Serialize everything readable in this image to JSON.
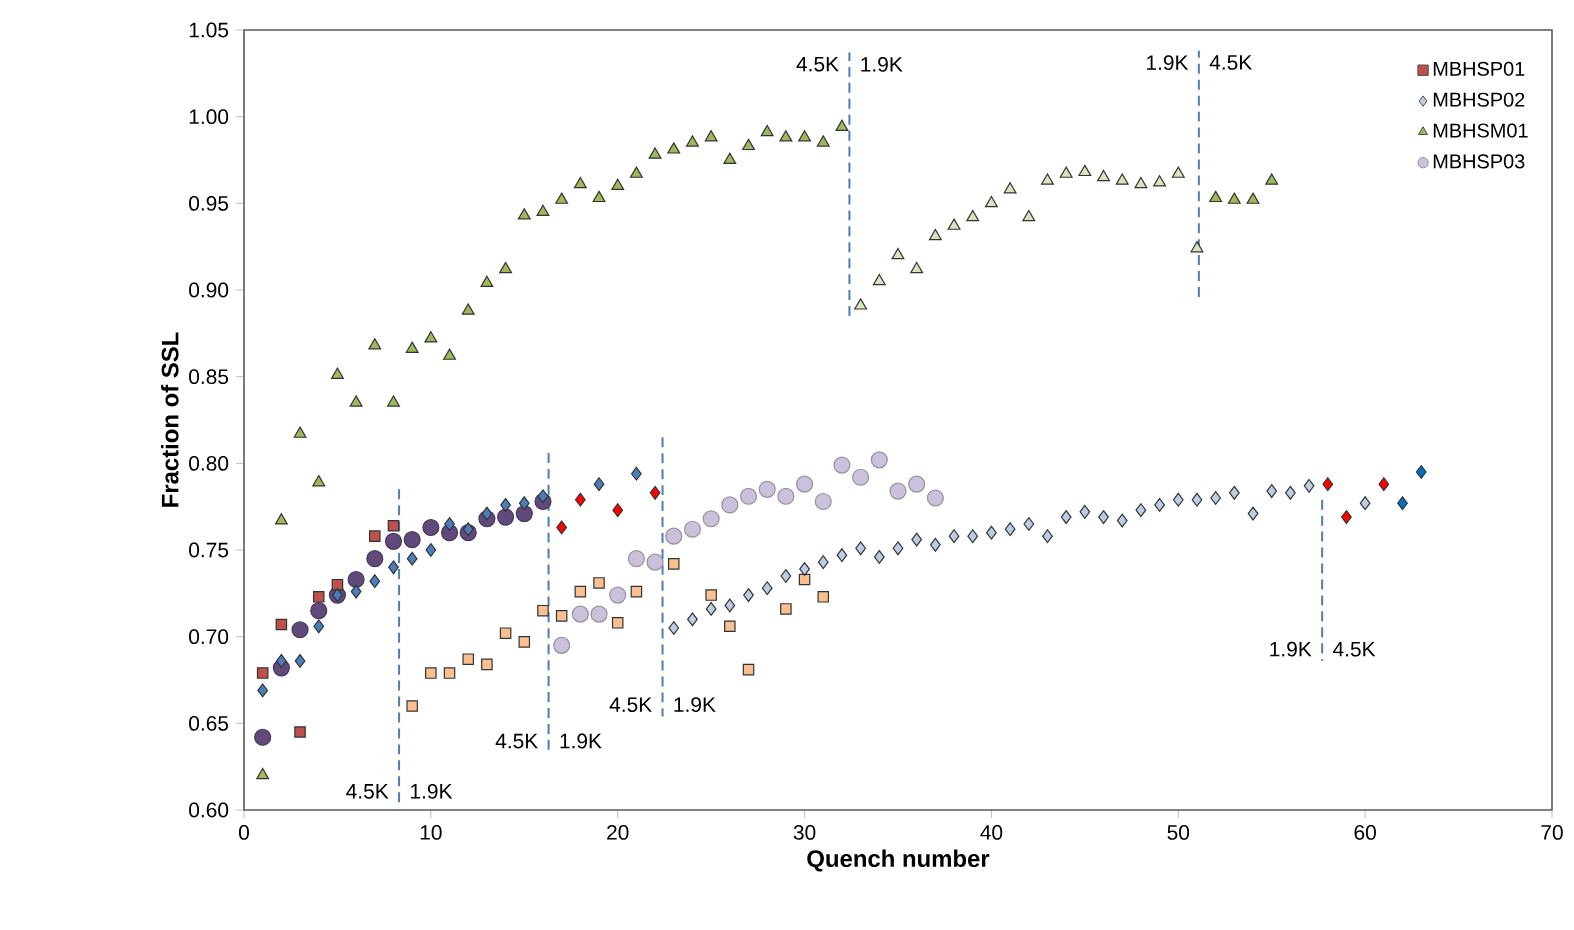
{
  "chart_data": {
    "type": "scatter",
    "xlabel": "Quench number",
    "ylabel": "Fraction of SSL",
    "xlim": [
      0,
      70
    ],
    "ylim": [
      0.6,
      1.05
    ],
    "xticks": [
      0,
      10,
      20,
      30,
      40,
      50,
      60,
      70
    ],
    "yticks": [
      {
        "value": 0.6,
        "label": "0.60"
      },
      {
        "value": 0.65,
        "label": "0.65"
      },
      {
        "value": 0.7,
        "label": "0.70"
      },
      {
        "value": 0.75,
        "label": "0.75"
      },
      {
        "value": 0.8,
        "label": "0.80"
      },
      {
        "value": 0.85,
        "label": "0.85"
      },
      {
        "value": 0.9,
        "label": "0.90"
      },
      {
        "value": 0.95,
        "label": "0.95"
      },
      {
        "value": 1.0,
        "label": "1.00"
      },
      {
        "value": 1.05,
        "label": "1.05"
      }
    ],
    "grid": false,
    "legend": "top right",
    "series": [
      {
        "name": "MBHSP01",
        "color": "#c0504d",
        "marker": "square",
        "x": [
          1,
          2,
          3,
          4,
          5,
          7,
          8,
          9,
          10,
          11,
          12,
          13,
          14,
          15,
          16,
          17,
          18,
          19,
          20,
          21,
          23,
          25,
          26,
          27,
          29,
          30,
          31
        ],
        "values": [
          0.679,
          0.707,
          0.645,
          0.723,
          0.73,
          0.758,
          0.764,
          0.66,
          0.679,
          0.679,
          0.687,
          0.684,
          0.702,
          0.697,
          0.715,
          0.712,
          0.726,
          0.731,
          0.708,
          0.726,
          0.742,
          0.724,
          0.706,
          0.681,
          0.716,
          0.733,
          0.723
        ],
        "colors": [
          "#c0504d",
          "#c0504d",
          "#c0504d",
          "#c0504d",
          "#c0504d",
          "#c0504d",
          "#c0504d",
          "#fac090",
          "#fac090",
          "#fac090",
          "#fac090",
          "#fac090",
          "#fac090",
          "#fac090",
          "#fac090",
          "#fac090",
          "#fac090",
          "#fac090",
          "#fac090",
          "#fac090",
          "#fac090",
          "#fac090",
          "#fac090",
          "#fac090",
          "#fac090",
          "#fac090",
          "#fac090"
        ]
      },
      {
        "name": "MBHSP02",
        "color": "#b9cde5",
        "marker": "diamond",
        "x": [
          1,
          2,
          3,
          4,
          5,
          6,
          7,
          8,
          9,
          10,
          11,
          12,
          13,
          14,
          15,
          16,
          17,
          18,
          19,
          20,
          21,
          22,
          23,
          24,
          25,
          26,
          27,
          28,
          29,
          30,
          31,
          32,
          33,
          34,
          35,
          36,
          37,
          38,
          39,
          40,
          41,
          42,
          43,
          44,
          45,
          46,
          47,
          48,
          49,
          50,
          51,
          52,
          53,
          54,
          55,
          56,
          57,
          58,
          59,
          60,
          61,
          62,
          63
        ],
        "values": [
          0.669,
          0.686,
          0.686,
          0.706,
          0.724,
          0.726,
          0.732,
          0.74,
          0.745,
          0.75,
          0.765,
          0.762,
          0.771,
          0.776,
          0.777,
          0.781,
          0.763,
          0.779,
          0.788,
          0.773,
          0.794,
          0.783,
          0.705,
          0.71,
          0.716,
          0.718,
          0.724,
          0.728,
          0.735,
          0.739,
          0.743,
          0.747,
          0.751,
          0.746,
          0.751,
          0.756,
          0.753,
          0.758,
          0.758,
          0.76,
          0.762,
          0.765,
          0.758,
          0.769,
          0.772,
          0.769,
          0.767,
          0.773,
          0.776,
          0.779,
          0.779,
          0.78,
          0.783,
          0.771,
          0.784,
          0.783,
          0.787,
          0.788,
          0.769,
          0.777,
          0.788,
          0.777,
          0.795
        ],
        "colors": [
          "#4a7ebb",
          "#4a7ebb",
          "#4a7ebb",
          "#4a7ebb",
          "#4a7ebb",
          "#4a7ebb",
          "#4a7ebb",
          "#4a7ebb",
          "#4a7ebb",
          "#4a7ebb",
          "#4a7ebb",
          "#4a7ebb",
          "#4a7ebb",
          "#4a7ebb",
          "#4a7ebb",
          "#4a7ebb",
          "#ff0000",
          "#ff0000",
          "#4a7ebb",
          "#ff0000",
          "#4a7ebb",
          "#ff0000",
          "#b9cde5",
          "#b9cde5",
          "#b9cde5",
          "#b9cde5",
          "#b9cde5",
          "#b9cde5",
          "#b9cde5",
          "#b9cde5",
          "#b9cde5",
          "#b9cde5",
          "#b9cde5",
          "#b9cde5",
          "#b9cde5",
          "#b9cde5",
          "#b9cde5",
          "#b9cde5",
          "#b9cde5",
          "#b9cde5",
          "#b9cde5",
          "#b9cde5",
          "#b9cde5",
          "#b9cde5",
          "#b9cde5",
          "#b9cde5",
          "#b9cde5",
          "#b9cde5",
          "#b9cde5",
          "#b9cde5",
          "#b9cde5",
          "#b9cde5",
          "#b9cde5",
          "#b9cde5",
          "#b9cde5",
          "#b9cde5",
          "#b9cde5",
          "#ff0000",
          "#ff0000",
          "#b9cde5",
          "#ff0000",
          "#0070c0",
          "#0070c0"
        ]
      },
      {
        "name": "MBHSM01",
        "color": "#9bbb59",
        "marker": "triangle",
        "x": [
          1,
          2,
          3,
          4,
          5,
          6,
          7,
          8,
          9,
          10,
          11,
          12,
          13,
          14,
          15,
          16,
          17,
          18,
          19,
          20,
          21,
          22,
          23,
          24,
          25,
          26,
          27,
          28,
          29,
          30,
          31,
          32,
          33,
          34,
          35,
          36,
          37,
          38,
          39,
          40,
          41,
          42,
          43,
          44,
          45,
          46,
          47,
          48,
          49,
          50,
          51,
          52,
          53,
          54,
          55
        ],
        "values": [
          0.62,
          0.767,
          0.817,
          0.789,
          0.851,
          0.835,
          0.868,
          0.835,
          0.866,
          0.872,
          0.862,
          0.888,
          0.904,
          0.912,
          0.943,
          0.945,
          0.952,
          0.961,
          0.953,
          0.96,
          0.967,
          0.978,
          0.981,
          0.985,
          0.988,
          0.975,
          0.983,
          0.991,
          0.988,
          0.988,
          0.985,
          0.994,
          0.891,
          0.905,
          0.92,
          0.912,
          0.931,
          0.937,
          0.942,
          0.95,
          0.958,
          0.942,
          0.963,
          0.967,
          0.968,
          0.965,
          0.963,
          0.961,
          0.962,
          0.967,
          0.924,
          0.953,
          0.952,
          0.952,
          0.963
        ],
        "colors": [
          "#9bbb59",
          "#9bbb59",
          "#9bbb59",
          "#9bbb59",
          "#9bbb59",
          "#9bbb59",
          "#9bbb59",
          "#9bbb59",
          "#9bbb59",
          "#9bbb59",
          "#9bbb59",
          "#9bbb59",
          "#9bbb59",
          "#9bbb59",
          "#9bbb59",
          "#9bbb59",
          "#9bbb59",
          "#9bbb59",
          "#9bbb59",
          "#9bbb59",
          "#9bbb59",
          "#9bbb59",
          "#9bbb59",
          "#9bbb59",
          "#9bbb59",
          "#9bbb59",
          "#9bbb59",
          "#9bbb59",
          "#9bbb59",
          "#9bbb59",
          "#9bbb59",
          "#9bbb59",
          "#d7e4bd",
          "#d7e4bd",
          "#d7e4bd",
          "#d7e4bd",
          "#d7e4bd",
          "#d7e4bd",
          "#d7e4bd",
          "#d7e4bd",
          "#d7e4bd",
          "#d7e4bd",
          "#d7e4bd",
          "#d7e4bd",
          "#d7e4bd",
          "#d7e4bd",
          "#d7e4bd",
          "#d7e4bd",
          "#d7e4bd",
          "#d7e4bd",
          "#d7e4bd",
          "#9bbb59",
          "#9bbb59",
          "#9bbb59",
          "#9bbb59"
        ]
      },
      {
        "name": "MBHSP03",
        "color": "#ccc1da",
        "marker": "circle",
        "x": [
          1,
          2,
          3,
          4,
          5,
          6,
          7,
          8,
          9,
          10,
          11,
          12,
          13,
          14,
          15,
          16,
          17,
          18,
          19,
          20,
          21,
          22,
          23,
          24,
          25,
          26,
          27,
          28,
          29,
          30,
          31,
          32,
          33,
          34,
          35,
          36,
          37
        ],
        "values": [
          0.642,
          0.682,
          0.704,
          0.715,
          0.724,
          0.733,
          0.745,
          0.755,
          0.756,
          0.763,
          0.76,
          0.76,
          0.768,
          0.769,
          0.771,
          0.778,
          0.695,
          0.713,
          0.713,
          0.724,
          0.745,
          0.743,
          0.758,
          0.762,
          0.768,
          0.776,
          0.781,
          0.785,
          0.781,
          0.788,
          0.778,
          0.799,
          0.792,
          0.802,
          0.784,
          0.788,
          0.78
        ],
        "colors": [
          "#604a7b",
          "#604a7b",
          "#604a7b",
          "#604a7b",
          "#604a7b",
          "#604a7b",
          "#604a7b",
          "#604a7b",
          "#604a7b",
          "#604a7b",
          "#604a7b",
          "#604a7b",
          "#604a7b",
          "#604a7b",
          "#604a7b",
          "#604a7b",
          "#ccc1da",
          "#ccc1da",
          "#ccc1da",
          "#ccc1da",
          "#ccc1da",
          "#ccc1da",
          "#ccc1da",
          "#ccc1da",
          "#ccc1da",
          "#ccc1da",
          "#ccc1da",
          "#ccc1da",
          "#ccc1da",
          "#ccc1da",
          "#ccc1da",
          "#ccc1da",
          "#ccc1da",
          "#ccc1da",
          "#ccc1da",
          "#ccc1da",
          "#ccc1da"
        ]
      },
      {
        "type": "line",
        "color": "#4a7ebb",
        "line_style": "dashed",
        "marker": "none",
        "x": [
          8.3,
          8.3
        ],
        "values": [
          0.785,
          0.604
        ]
      },
      {
        "type": "line",
        "color": "#4a7ebb",
        "line_style": "dashed",
        "marker": "none",
        "x": [
          16.3,
          16.3
        ],
        "values": [
          0.806,
          0.633
        ]
      },
      {
        "type": "line",
        "color": "#4a7ebb",
        "line_style": "dashed",
        "marker": "none",
        "x": [
          22.4,
          22.4
        ],
        "values": [
          0.815,
          0.654
        ]
      },
      {
        "type": "line",
        "color": "#4a7ebb",
        "line_style": "dashed",
        "marker": "none",
        "x": [
          32.4,
          32.4
        ],
        "values": [
          0.885,
          1.037
        ]
      },
      {
        "type": "line",
        "color": "#4a7ebb",
        "line_style": "dashed",
        "marker": "none",
        "x": [
          51.1,
          51.1
        ],
        "values": [
          0.896,
          1.038
        ]
      },
      {
        "type": "line",
        "color": "#4a7ebb",
        "line_style": "dashed",
        "marker": "none",
        "x": [
          57.7,
          57.7
        ],
        "values": [
          0.779,
          0.686
        ]
      }
    ],
    "annotations": [
      "4.5K",
      "1.9K",
      "4.5K",
      "1.9K",
      "4.5K",
      "1.9K",
      "4.5K",
      "1.9K",
      "1.9K",
      "4.5K",
      "1.9K",
      "4.5K"
    ]
  }
}
